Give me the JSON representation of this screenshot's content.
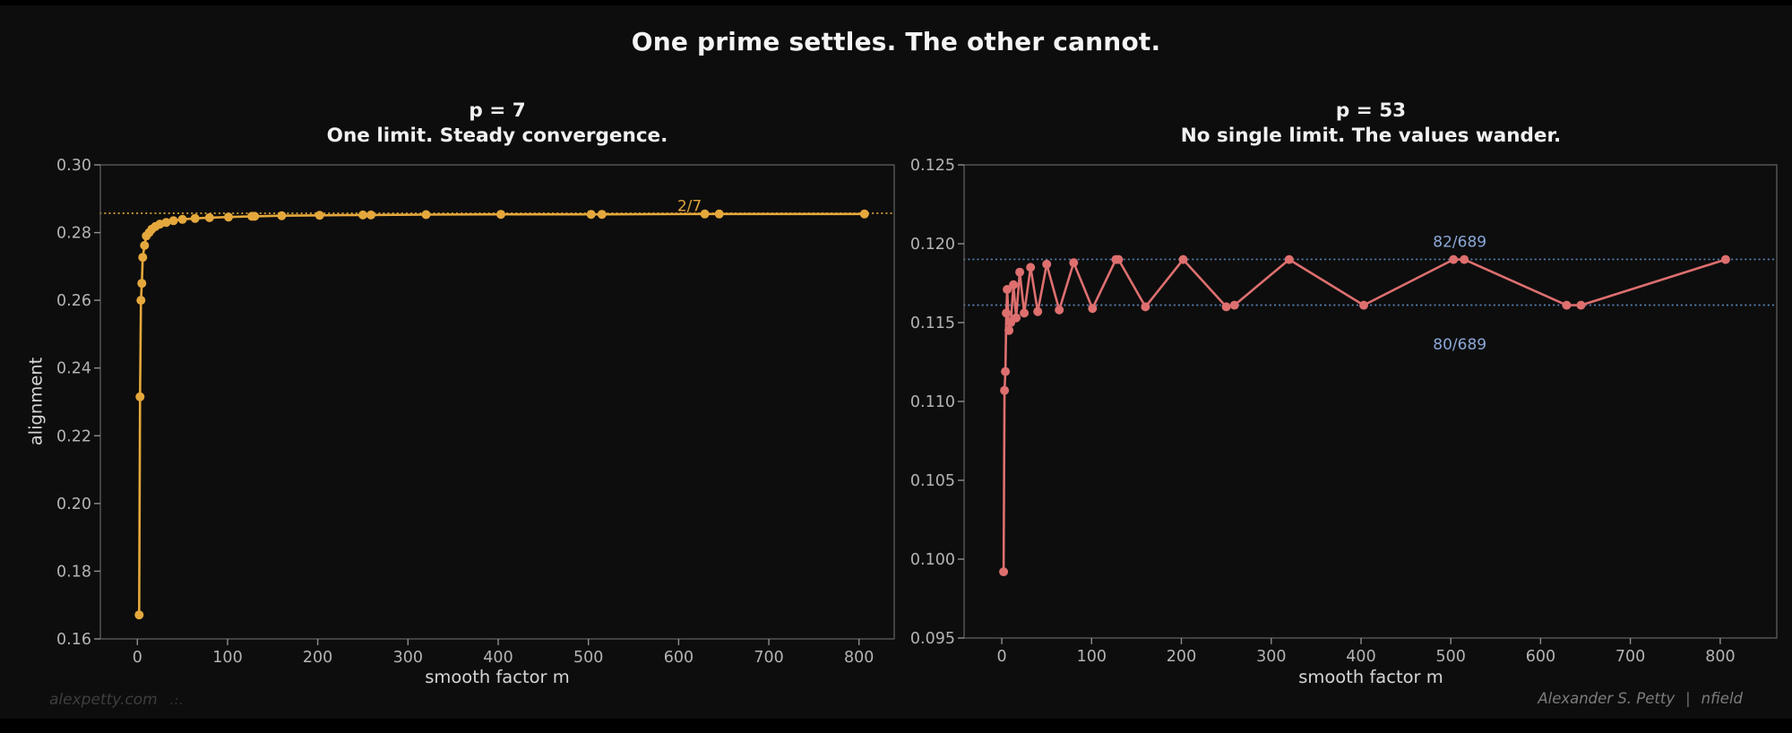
{
  "page": {
    "title": "One prime settles. The other cannot.",
    "background": "#0d0d0d"
  },
  "watermark": {
    "text": "alexpetty.com",
    "glyph": ".:."
  },
  "credit": {
    "author": "Alexander S. Petty",
    "separator": "|",
    "handle": "nfield"
  },
  "chart_data": [
    {
      "type": "line",
      "id": "p7",
      "title": "p = 7",
      "subtitle": "One limit. Steady convergence.",
      "xlabel": "smooth factor m",
      "ylabel": "alignment",
      "color": "#e5a83c",
      "marker": "o",
      "grid": false,
      "legend": null,
      "xlim": [
        -41,
        839
      ],
      "ylim": [
        0.16,
        0.3
      ],
      "xticks": [
        0,
        100,
        200,
        300,
        400,
        500,
        600,
        700,
        800
      ],
      "yticks": [
        0.16,
        0.18,
        0.2,
        0.22,
        0.24,
        0.26,
        0.28,
        0.3
      ],
      "ytick_decimals": 2,
      "x": [
        2,
        3,
        4,
        5,
        6,
        8,
        10,
        13,
        16,
        20,
        25,
        32,
        40,
        50,
        64,
        80,
        101,
        127,
        130,
        160,
        202,
        250,
        259,
        320,
        403,
        503,
        515,
        629,
        645,
        806
      ],
      "y": [
        0.1671,
        0.2315,
        0.26,
        0.265,
        0.2727,
        0.2762,
        0.279,
        0.28,
        0.281,
        0.2818,
        0.2825,
        0.283,
        0.2835,
        0.2839,
        0.2842,
        0.2844,
        0.2846,
        0.2848,
        0.2848,
        0.285,
        0.2851,
        0.2852,
        0.2852,
        0.2853,
        0.2854,
        0.2854,
        0.2854,
        0.2855,
        0.2855,
        0.2855
      ],
      "ref_lines": [
        {
          "value": 0.2857142857,
          "label": "2/7",
          "label_x": 612,
          "label_y": 0.2864,
          "color": "#c7952f",
          "label_color": "#e2a53c"
        }
      ]
    },
    {
      "type": "line",
      "id": "p53",
      "title": "p = 53",
      "subtitle": "No single limit. The values wander.",
      "xlabel": "smooth factor m",
      "ylabel": "",
      "color": "#de6f6f",
      "marker": "o",
      "grid": false,
      "legend": null,
      "xlim": [
        -42,
        863
      ],
      "ylim": [
        0.095,
        0.125
      ],
      "xticks": [
        0,
        100,
        200,
        300,
        400,
        500,
        600,
        700,
        800
      ],
      "yticks": [
        0.095,
        0.1,
        0.105,
        0.11,
        0.115,
        0.12,
        0.125
      ],
      "ytick_decimals": 3,
      "x": [
        2,
        3,
        4,
        5,
        6,
        8,
        10,
        13,
        16,
        20,
        25,
        32,
        40,
        50,
        64,
        80,
        101,
        127,
        130,
        160,
        202,
        250,
        259,
        320,
        403,
        503,
        515,
        629,
        645,
        806
      ],
      "y": [
        0.0992,
        0.1107,
        0.1119,
        0.1156,
        0.1171,
        0.1145,
        0.115,
        0.1174,
        0.1153,
        0.1182,
        0.1156,
        0.1185,
        0.1157,
        0.1187,
        0.1158,
        0.1188,
        0.1159,
        0.119,
        0.119,
        0.116,
        0.119,
        0.116,
        0.1161,
        0.119,
        0.1161,
        0.119,
        0.119,
        0.1161,
        0.1161,
        0.119
      ],
      "ref_lines": [
        {
          "value": 0.119013,
          "label": "82/689",
          "label_x": 510,
          "label_y": 0.1198,
          "color": "#557aa8",
          "label_color": "#8aa8d8"
        },
        {
          "value": 0.11611,
          "label": "80/689",
          "label_x": 510,
          "label_y": 0.1133,
          "color": "#557aa8",
          "label_color": "#8aa8d8"
        }
      ]
    }
  ]
}
